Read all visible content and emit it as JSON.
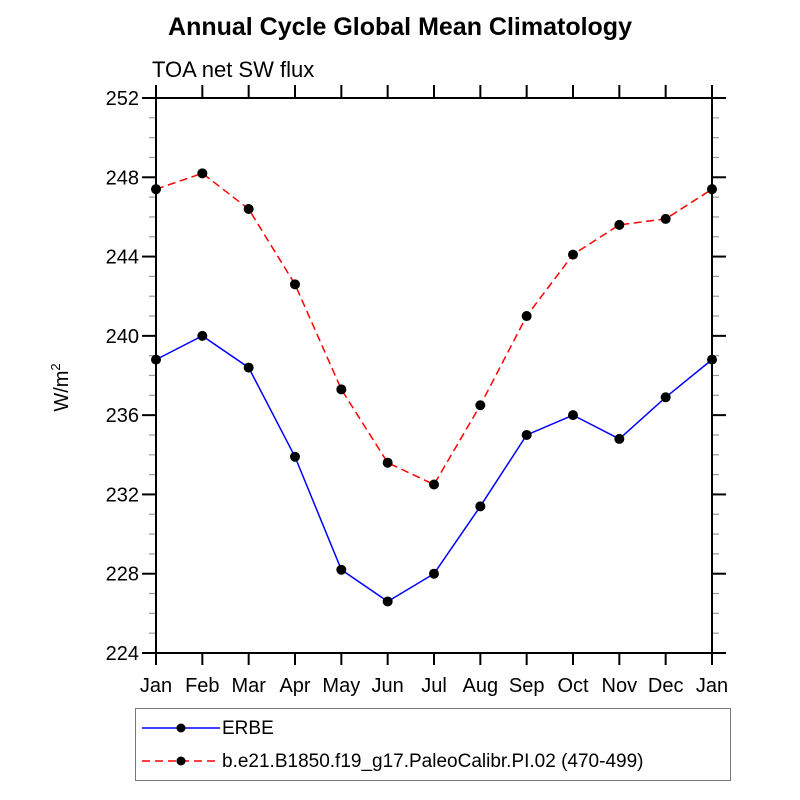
{
  "title": "Annual Cycle Global Mean Climatology",
  "subtitle": "TOA net SW flux",
  "chart_data": {
    "type": "line",
    "categories": [
      "Jan",
      "Feb",
      "Mar",
      "Apr",
      "May",
      "Jun",
      "Jul",
      "Aug",
      "Sep",
      "Oct",
      "Nov",
      "Dec",
      "Jan"
    ],
    "series": [
      {
        "name": "ERBE",
        "color": "#0000ff",
        "style": "solid",
        "values": [
          238.8,
          240.0,
          238.4,
          233.9,
          228.2,
          226.6,
          228.0,
          231.4,
          235.0,
          236.0,
          234.8,
          236.9,
          238.8
        ]
      },
      {
        "name": "b.e21.B1850.f19_g17.PaleoCalibr.PI.02 (470-499)",
        "color": "#ff0000",
        "style": "dashed",
        "values": [
          247.4,
          248.2,
          246.4,
          242.6,
          237.3,
          233.6,
          232.5,
          236.5,
          241.0,
          244.1,
          245.6,
          245.9,
          247.4
        ]
      }
    ],
    "xlabel": "",
    "ylabel": "W/m²",
    "ylabel_base": "W/m",
    "ylabel_sup": "2",
    "ylim": [
      224,
      252
    ],
    "ytick_labels": [
      224,
      228,
      232,
      236,
      240,
      244,
      248,
      252
    ],
    "ytick_minor_step": 1,
    "marker": "filled-circle",
    "marker_color": "#000000",
    "axis_color": "#000000",
    "minor_tick_color": "#999999",
    "grid": "off",
    "legend_position": "bottom-left-box"
  }
}
